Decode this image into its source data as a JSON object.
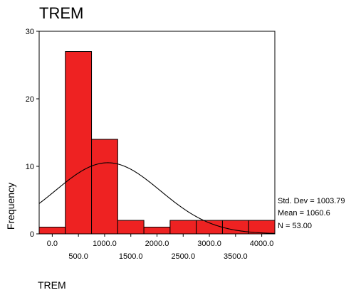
{
  "chart_data": {
    "type": "bar",
    "title": "TREM",
    "xlabel": "TREM",
    "ylabel": "Frequency",
    "bin_width": 500,
    "bin_centers": [
      0,
      500,
      1000,
      1500,
      2000,
      2500,
      3000,
      3500,
      4000
    ],
    "values": [
      1,
      27,
      14,
      2,
      1,
      2,
      2,
      2,
      2
    ],
    "xlim": [
      -250,
      4250
    ],
    "ylim": [
      0,
      30
    ],
    "yticks": [
      0,
      10,
      20,
      30
    ],
    "xtick_values_lower_row": [
      0,
      1000,
      2000,
      3000,
      4000
    ],
    "xtick_values_upper_row": [
      500,
      1500,
      2500,
      3500
    ],
    "xtick_labels_lower_row": [
      "0.0",
      "1000.0",
      "2000.0",
      "3000.0",
      "4000.0"
    ],
    "xtick_labels_upper_row": [
      "500.0",
      "1500.0",
      "2500.0",
      "3500.0"
    ],
    "ytick_labels": [
      "0",
      "10",
      "20",
      "30"
    ],
    "normal_curve": {
      "mean": 1060.6,
      "std_dev": 1003.79,
      "n": 53
    },
    "stats_labels": [
      "Std. Dev = 1003.79",
      "Mean = 1060.6",
      "N = 53.00"
    ],
    "bar_color": "#ee2222",
    "grid": false,
    "legend": "none"
  }
}
